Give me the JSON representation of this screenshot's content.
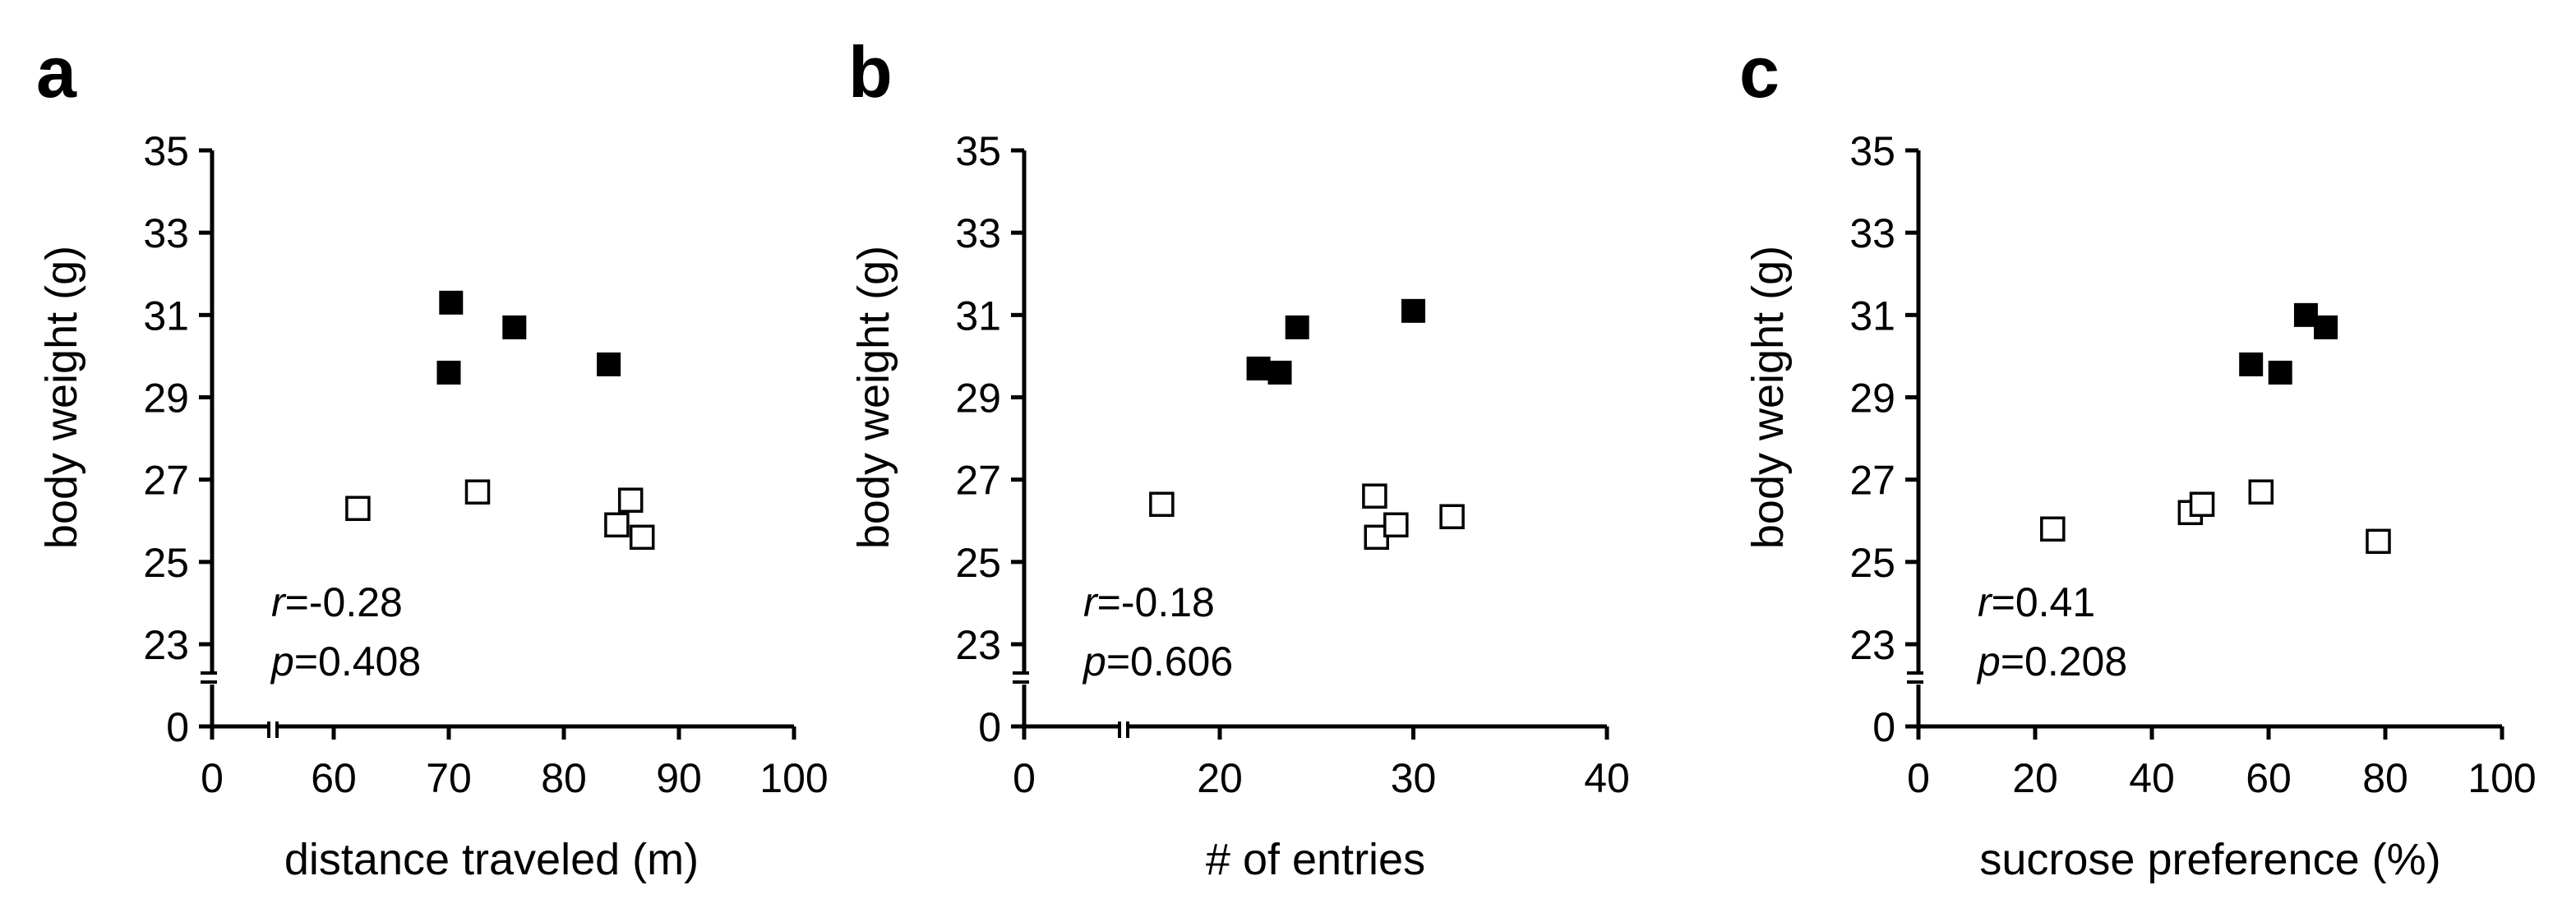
{
  "chart_data": [
    {
      "panel": "a",
      "type": "scatter",
      "xlabel": "distance traveled (m)",
      "ylabel": "body weight (g)",
      "xticks": [
        "0",
        "60",
        "70",
        "80",
        "90",
        "100"
      ],
      "yticks": [
        "0",
        "23",
        "25",
        "27",
        "29",
        "31",
        "33",
        "35"
      ],
      "xlim": [
        50,
        100
      ],
      "ylim": [
        21,
        35
      ],
      "x_axis_break": true,
      "y_axis_break": true,
      "stat_r": "=-0.28",
      "stat_p": "=0.408",
      "series": [
        {
          "marker": "filled-square",
          "color": "#000000",
          "points": [
            [
              70.2,
              31.3
            ],
            [
              70.0,
              29.6
            ],
            [
              75.7,
              30.7
            ],
            [
              83.9,
              29.8
            ]
          ]
        },
        {
          "marker": "open-square",
          "color": "#000000",
          "points": [
            [
              62.1,
              26.3
            ],
            [
              72.5,
              26.7
            ],
            [
              84.6,
              25.9
            ],
            [
              85.8,
              26.5
            ],
            [
              86.8,
              25.6
            ]
          ]
        }
      ]
    },
    {
      "panel": "b",
      "type": "scatter",
      "xlabel": "# of entries",
      "ylabel": "body weight (g)",
      "xticks": [
        "0",
        "20",
        "30",
        "40"
      ],
      "yticks": [
        "0",
        "23",
        "25",
        "27",
        "29",
        "31",
        "33",
        "35"
      ],
      "xlim": [
        10,
        40
      ],
      "ylim": [
        21,
        35
      ],
      "x_axis_break": true,
      "y_axis_break": true,
      "stat_r": "=-0.18",
      "stat_p": "=0.606",
      "series": [
        {
          "marker": "filled-square",
          "color": "#000000",
          "points": [
            [
              22.0,
              29.7
            ],
            [
              23.1,
              29.6
            ],
            [
              24.0,
              30.7
            ],
            [
              30.0,
              31.1
            ]
          ]
        },
        {
          "marker": "open-square",
          "color": "#000000",
          "points": [
            [
              17.0,
              26.4
            ],
            [
              28.0,
              26.6
            ],
            [
              28.1,
              25.6
            ],
            [
              29.1,
              25.9
            ],
            [
              32.0,
              26.1
            ]
          ]
        }
      ]
    },
    {
      "panel": "c",
      "type": "scatter",
      "xlabel": "sucrose preference (%)",
      "ylabel": "body weight (g)",
      "xticks": [
        "0",
        "20",
        "40",
        "60",
        "80",
        "100"
      ],
      "yticks": [
        "0",
        "23",
        "25",
        "27",
        "29",
        "31",
        "33",
        "35"
      ],
      "xlim": [
        0,
        100
      ],
      "ylim": [
        21,
        35
      ],
      "x_axis_break": false,
      "y_axis_break": true,
      "stat_r": "=0.41",
      "stat_p": "=0.208",
      "series": [
        {
          "marker": "filled-square",
          "color": "#000000",
          "points": [
            [
              57.0,
              29.8
            ],
            [
              62.0,
              29.6
            ],
            [
              66.4,
              31.0
            ],
            [
              69.8,
              30.7
            ]
          ]
        },
        {
          "marker": "open-square",
          "color": "#000000",
          "points": [
            [
              23.0,
              25.8
            ],
            [
              46.6,
              26.2
            ],
            [
              48.6,
              26.4
            ],
            [
              58.7,
              26.7
            ],
            [
              78.8,
              25.5
            ]
          ]
        }
      ]
    }
  ]
}
